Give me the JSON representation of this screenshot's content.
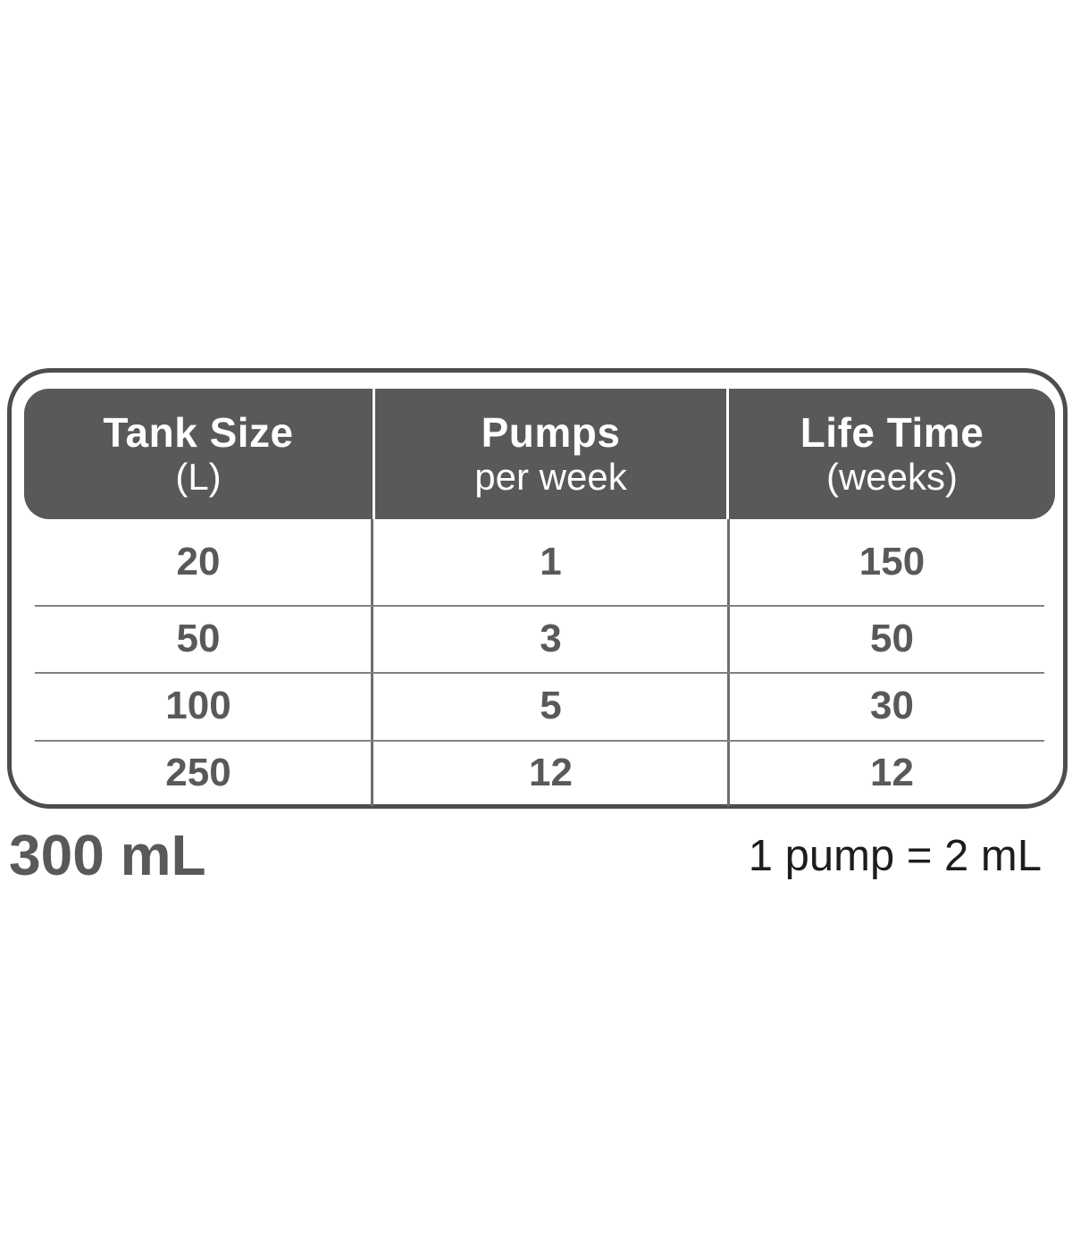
{
  "chart_data": {
    "type": "table",
    "columns": [
      {
        "title": "Tank Size",
        "subtitle": "(L)"
      },
      {
        "title": "Pumps",
        "subtitle": "per week"
      },
      {
        "title": "Life Time",
        "subtitle": "(weeks)"
      }
    ],
    "rows": [
      [
        "20",
        "1",
        "150"
      ],
      [
        "50",
        "3",
        "50"
      ],
      [
        "100",
        "5",
        "30"
      ],
      [
        "250",
        "12",
        "12"
      ]
    ],
    "footer_left": "300 mL",
    "footer_right": "1 pump = 2 mL"
  },
  "colors": {
    "background": "#ffffff",
    "header_bg": "#58595b",
    "header_text": "#ffffff",
    "body_text": "#58595b",
    "border": "#4c4d4f",
    "grid_line": "#808184",
    "divider": "#6d6e70",
    "note_text": "#1d1d1b"
  }
}
